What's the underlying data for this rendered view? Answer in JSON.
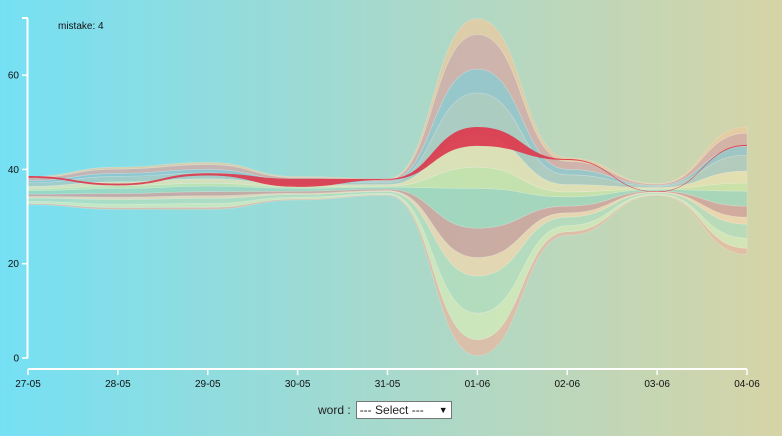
{
  "chart_data": {
    "type": "area",
    "annotation": "mistake: 4",
    "x": [
      "27-05",
      "28-05",
      "29-05",
      "30-05",
      "31-05",
      "01-06",
      "02-06",
      "03-06",
      "04-06"
    ],
    "yticks": [
      0,
      20,
      40,
      60
    ],
    "ylim": [
      0,
      70
    ],
    "lower_envelope": [
      32.5,
      31.5,
      31.5,
      33.5,
      34.5,
      0.5,
      26,
      34.5,
      22
    ],
    "upper_envelope": [
      38.5,
      40.5,
      41.5,
      38.5,
      38,
      72,
      42.5,
      37,
      49
    ],
    "highlight_series": {
      "bottom": [
        38.2,
        36.6,
        38.7,
        36.3,
        37.8,
        45.0,
        42.0,
        35.2,
        45.0
      ],
      "top": [
        38.6,
        37.0,
        39.2,
        38.0,
        38.0,
        49.0,
        42.2,
        35.3,
        45.2
      ]
    },
    "grid": false,
    "xlabel": "",
    "ylabel": "",
    "colors": [
      "#e5b9a3",
      "#d4e9b9",
      "#b4dcbd",
      "#f0d6ae",
      "#cf9f9a",
      "#9ed6bd",
      "#c8e4a8",
      "#e7e2b4",
      "#a9c8c0",
      "#8fc1cc",
      "#d5a9a5",
      "#e9c9a0"
    ],
    "highlight_color": "#dc3a4e"
  },
  "controls": {
    "label": "word :",
    "select_value": "--- Select ---",
    "arrow_icon": "▼"
  }
}
